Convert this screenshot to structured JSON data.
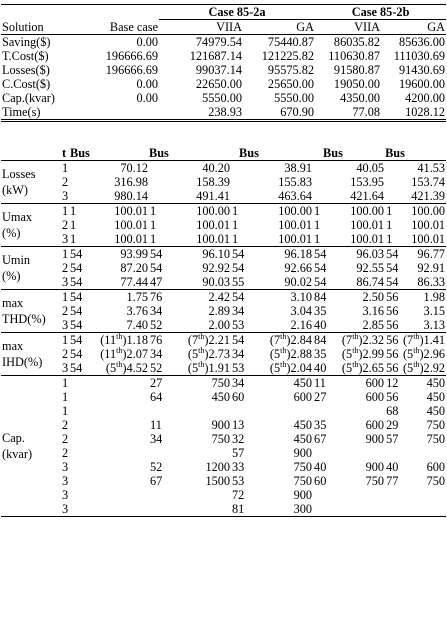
{
  "header": {
    "case_a": "Case 85-2a",
    "case_b": "Case 85-2b",
    "col_solution": "Solution",
    "col_base": "Base case",
    "col_viia": "VIIA",
    "col_ga": "GA"
  },
  "summary": [
    {
      "label": "Saving($)",
      "base": "0.00",
      "a_viia": "74979.54",
      "a_ga": "75440.87",
      "b_viia": "86035.82",
      "b_ga": "85636.00"
    },
    {
      "label": "T.Cost($)",
      "base": "196666.69",
      "a_viia": "121687.14",
      "a_ga": "121225.82",
      "b_viia": "110630.87",
      "b_ga": "111030.69"
    },
    {
      "label": "Losses($)",
      "base": "196666.69",
      "a_viia": "99037.14",
      "a_ga": "95575.82",
      "b_viia": "91580.87",
      "b_ga": "91430.69"
    },
    {
      "label": "C.Cost($)",
      "base": "0.00",
      "a_viia": "22650.00",
      "a_ga": "25650.00",
      "b_viia": "19050.00",
      "b_ga": "19600.00"
    },
    {
      "label": "Cap.(kvar)",
      "base": "0.00",
      "a_viia": "5550.00",
      "a_ga": "5550.00",
      "b_viia": "4350.00",
      "b_ga": "4200.00"
    },
    {
      "label": "Time(s)",
      "base": "",
      "a_viia": "238.93",
      "a_ga": "670.90",
      "b_viia": "77.08",
      "b_ga": "1028.12"
    }
  ],
  "detail_header": {
    "t": "t",
    "bus": "Bus"
  },
  "groups": {
    "losses": {
      "label1": "Losses",
      "label2": "(kW)",
      "rows": [
        {
          "t": "1",
          "b0": "",
          "v0": "70.12",
          "b1": "",
          "v1": "40.20",
          "b2": "",
          "v2": "38.91",
          "b3": "",
          "v3": "40.05",
          "b4": "",
          "v4": "41.53"
        },
        {
          "t": "2",
          "b0": "",
          "v0": "316.98",
          "b1": "",
          "v1": "158.39",
          "b2": "",
          "v2": "155.83",
          "b3": "",
          "v3": "153.95",
          "b4": "",
          "v4": "153.74"
        },
        {
          "t": "3",
          "b0": "",
          "v0": "980.14",
          "b1": "",
          "v1": "491.41",
          "b2": "",
          "v2": "463.64",
          "b3": "",
          "v3": "421.64",
          "b4": "",
          "v4": "421.39"
        }
      ]
    },
    "umax": {
      "label1": "Umax",
      "label2": "(%)",
      "rows": [
        {
          "t": "1",
          "b0": "1",
          "v0": "100.01",
          "b1": "1",
          "v1": "100.00",
          "b2": "1",
          "v2": "100.00",
          "b3": "1",
          "v3": "100.00",
          "b4": "1",
          "v4": "100.00"
        },
        {
          "t": "2",
          "b0": "1",
          "v0": "100.01",
          "b1": "1",
          "v1": "100.01",
          "b2": "1",
          "v2": "100.01",
          "b3": "1",
          "v3": "100.01",
          "b4": "1",
          "v4": "100.01"
        },
        {
          "t": "3",
          "b0": "1",
          "v0": "100.01",
          "b1": "1",
          "v1": "100.01",
          "b2": "1",
          "v2": "100.01",
          "b3": "1",
          "v3": "100.01",
          "b4": "1",
          "v4": "100.01"
        }
      ]
    },
    "umin": {
      "label1": "Umin",
      "label2": "(%)",
      "rows": [
        {
          "t": "1",
          "b0": "54",
          "v0": "93.99",
          "b1": "54",
          "v1": "96.10",
          "b2": "54",
          "v2": "96.18",
          "b3": "54",
          "v3": "96.03",
          "b4": "54",
          "v4": "96.77"
        },
        {
          "t": "2",
          "b0": "54",
          "v0": "87.20",
          "b1": "54",
          "v1": "92.92",
          "b2": "54",
          "v2": "92.66",
          "b3": "54",
          "v3": "92.55",
          "b4": "54",
          "v4": "92.91"
        },
        {
          "t": "3",
          "b0": "54",
          "v0": "77.44",
          "b1": "47",
          "v1": "90.03",
          "b2": "55",
          "v2": "90.02",
          "b3": "54",
          "v3": "86.74",
          "b4": "54",
          "v4": "86.33"
        }
      ]
    },
    "thd": {
      "label1": "max",
      "label2": "THD(%)",
      "rows": [
        {
          "t": "1",
          "b0": "54",
          "v0": "1.75",
          "b1": "76",
          "v1": "2.42",
          "b2": "54",
          "v2": "3.10",
          "b3": "84",
          "v3": "2.50",
          "b4": "56",
          "v4": "1.98"
        },
        {
          "t": "2",
          "b0": "54",
          "v0": "3.76",
          "b1": "34",
          "v1": "2.89",
          "b2": "34",
          "v2": "3.04",
          "b3": "35",
          "v3": "3.16",
          "b4": "56",
          "v4": "3.15"
        },
        {
          "t": "3",
          "b0": "54",
          "v0": "7.40",
          "b1": "52",
          "v1": "2.00",
          "b2": "53",
          "v2": "2.16",
          "b3": "40",
          "v3": "2.85",
          "b4": "56",
          "v4": "3.13"
        }
      ]
    },
    "ihd": {
      "label1": "max",
      "label2": "IHD(%)",
      "rows": [
        {
          "t": "1",
          "b0": "54",
          "h0": "11",
          "v0": "1.18",
          "b1": "76",
          "h1": "7",
          "v1": "2.21",
          "b2": "54",
          "h2": "7",
          "v2": "2.84",
          "b3": "84",
          "h3": "7",
          "v3": "2.32",
          "b4": "56",
          "h4": "7",
          "v4": "1.41"
        },
        {
          "t": "2",
          "b0": "54",
          "h0": "11",
          "v0": "2.07",
          "b1": "34",
          "h1": "5",
          "v1": "2.73",
          "b2": "34",
          "h2": "5",
          "v2": "2.88",
          "b3": "35",
          "h3": "5",
          "v3": "2.99",
          "b4": "56",
          "h4": "5",
          "v4": "2.96"
        },
        {
          "t": "3",
          "b0": "54",
          "h0": "5",
          "v0": "4.52",
          "b1": "52",
          "h1": "5",
          "v1": "1.91",
          "b2": "53",
          "h2": "5",
          "v2": "2.04",
          "b3": "40",
          "h3": "5",
          "v3": "2.65",
          "b4": "56",
          "h4": "5",
          "v4": "2.92"
        }
      ],
      "th": "th"
    },
    "cap": {
      "label1": "Cap.",
      "label2": "(kvar)",
      "rows": [
        {
          "t": "1",
          "b1": "27",
          "v1": "750",
          "b2": "34",
          "v2": "450",
          "b3": "11",
          "v3": "600",
          "b4": "12",
          "v4": "450"
        },
        {
          "t": "1",
          "b1": "64",
          "v1": "450",
          "b2": "60",
          "v2": "600",
          "b3": "27",
          "v3": "600",
          "b4": "56",
          "v4": "450"
        },
        {
          "t": "1",
          "b1": "",
          "v1": "",
          "b2": "",
          "v2": "",
          "b3": "",
          "v3": "",
          "b4": "68",
          "v4": "450"
        },
        {
          "t": "2",
          "b1": "11",
          "v1": "900",
          "b2": "13",
          "v2": "450",
          "b3": "35",
          "v3": "600",
          "b4": "29",
          "v4": "750"
        },
        {
          "t": "2",
          "b1": "34",
          "v1": "750",
          "b2": "32",
          "v2": "450",
          "b3": "67",
          "v3": "900",
          "b4": "57",
          "v4": "750"
        },
        {
          "t": "2",
          "b1": "",
          "v1": "",
          "b2": "57",
          "v2": "900",
          "b3": "",
          "v3": "",
          "b4": "",
          "v4": ""
        },
        {
          "t": "3",
          "b1": "52",
          "v1": "1200",
          "b2": "33",
          "v2": "750",
          "b3": "40",
          "v3": "900",
          "b4": "40",
          "v4": "600"
        },
        {
          "t": "3",
          "b1": "67",
          "v1": "1500",
          "b2": "53",
          "v2": "750",
          "b3": "60",
          "v3": "750",
          "b4": "77",
          "v4": "750"
        },
        {
          "t": "3",
          "b1": "",
          "v1": "",
          "b2": "72",
          "v2": "900",
          "b3": "",
          "v3": "",
          "b4": "",
          "v4": ""
        },
        {
          "t": "3",
          "b1": "",
          "v1": "",
          "b2": "81",
          "v2": "300",
          "b3": "",
          "v3": "",
          "b4": "",
          "v4": ""
        }
      ]
    }
  }
}
